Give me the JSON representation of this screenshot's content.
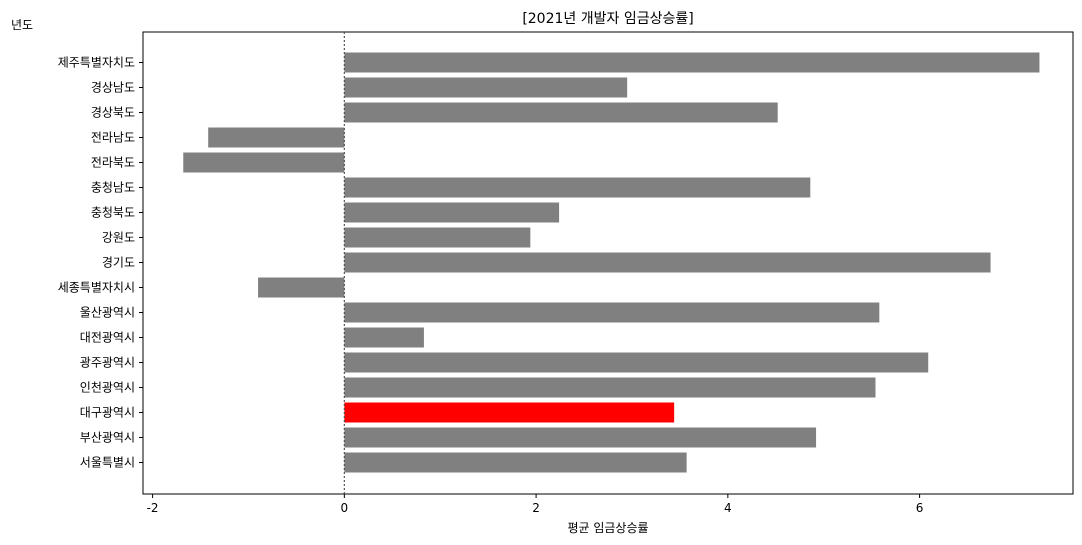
{
  "corner_label": "년도",
  "chart_data": {
    "type": "bar",
    "orientation": "horizontal",
    "title": "[2021년 개발자 임금상승률]",
    "xlabel": "평균 임금상승률",
    "ylabel": "",
    "xlim": [
      -2.1,
      7.6
    ],
    "xticks": [
      -2,
      0,
      2,
      4,
      6
    ],
    "categories": [
      "제주특별자치도",
      "경상남도",
      "경상북도",
      "전라남도",
      "전라북도",
      "충청남도",
      "충청북도",
      "강원도",
      "경기도",
      "세종특별자치시",
      "울산광역시",
      "대전광역시",
      "광주광역시",
      "인천광역시",
      "대구광역시",
      "부산광역시",
      "서울특별시"
    ],
    "values": [
      7.25,
      2.95,
      4.52,
      -1.42,
      -1.68,
      4.86,
      2.24,
      1.94,
      6.74,
      -0.9,
      5.58,
      0.83,
      6.09,
      5.54,
      3.44,
      4.92,
      3.57
    ],
    "highlight": "대구광역시",
    "colors": {
      "bar": "#808080",
      "highlight": "#ff0000",
      "zero_line": "#555555"
    },
    "zero_line": "dotted",
    "grid": false
  }
}
